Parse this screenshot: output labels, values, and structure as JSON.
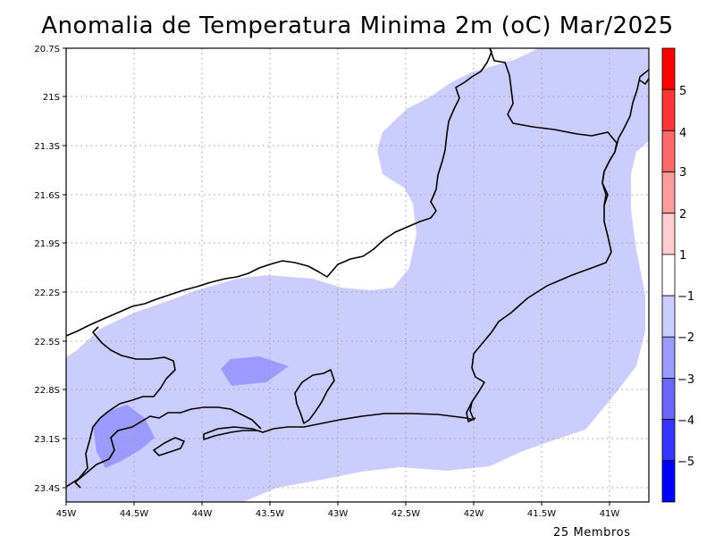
{
  "map": {
    "title": "Anomalia de Temperatura Minima 2m (oC) Mar/2025",
    "footer": "25 Membros",
    "lat_labels": [
      "20.7S",
      "21S",
      "21.3S",
      "21.6S",
      "21.9S",
      "22.2S",
      "22.5S",
      "22.8S",
      "23.1S",
      "23.4S"
    ],
    "lon_labels": [
      "45W",
      "44.5W",
      "44W",
      "43.5W",
      "43W",
      "42.5W",
      "42W",
      "41.5W",
      "41W"
    ],
    "colorbar": {
      "labels": [
        "5",
        "4",
        "3",
        "2",
        "1",
        "−1",
        "−2",
        "−3",
        "−4",
        "−5"
      ],
      "colors": [
        "#ff0000",
        "#ff3535",
        "#ff6868",
        "#ff9b9b",
        "#ffcdcd",
        "#ffffff",
        "#cccdff",
        "#9b9bff",
        "#6868ff",
        "#3535ff",
        "#0000ff"
      ]
    },
    "shading_colors": {
      "range_-2_-1": "#cccdff",
      "range_-3_-2": "#9b9bff"
    }
  }
}
